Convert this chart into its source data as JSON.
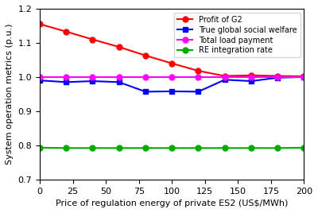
{
  "x": [
    0,
    20,
    40,
    60,
    80,
    100,
    120,
    140,
    160,
    180,
    200
  ],
  "profit_g2": [
    1.155,
    1.133,
    1.11,
    1.088,
    1.063,
    1.04,
    1.018,
    1.003,
    1.005,
    1.003,
    1.002
  ],
  "social_welfare": [
    0.99,
    0.985,
    0.988,
    0.985,
    0.957,
    0.958,
    0.957,
    0.992,
    0.988,
    0.998,
    1.0
  ],
  "load_payment": [
    1.0,
    1.0,
    1.0,
    1.0,
    1.0,
    1.0,
    1.0,
    1.0,
    1.0,
    1.0,
    1.0
  ],
  "re_integration": [
    0.793,
    0.792,
    0.792,
    0.792,
    0.792,
    0.792,
    0.792,
    0.792,
    0.792,
    0.792,
    0.793
  ],
  "colors": {
    "profit_g2": "#FF0000",
    "social_welfare": "#0000FF",
    "load_payment": "#FF00FF",
    "re_integration": "#00AA00"
  },
  "markers": {
    "profit_g2": "o",
    "social_welfare": "s",
    "load_payment": "o",
    "re_integration": "o"
  },
  "title": "",
  "xlabel": "Price of regulation energy of private ES2 (US$/MWh)",
  "ylabel": "System operation metrics (p.u.)",
  "xlim": [
    0,
    200
  ],
  "ylim": [
    0.7,
    1.2
  ],
  "yticks": [
    0.7,
    0.8,
    0.9,
    1.0,
    1.1,
    1.2
  ],
  "xticks": [
    0,
    25,
    50,
    75,
    100,
    125,
    150,
    175,
    200
  ],
  "legend_labels": [
    "Profit of G2",
    "True global social welfare",
    "Total load payment",
    "RE integration rate"
  ],
  "linewidth": 1.5,
  "markersize": 5
}
